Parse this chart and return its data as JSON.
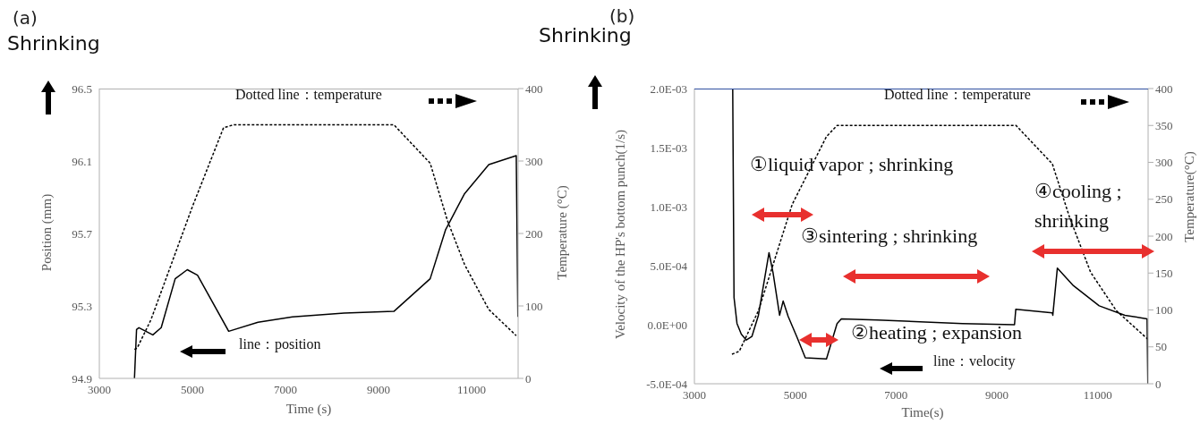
{
  "chart_data": [
    {
      "type": "line",
      "title": "(a)",
      "xlabel": "Time (s)",
      "ylabel": "Position (mm)",
      "y2label": "Temperature (°C)",
      "xlim": [
        3000,
        12000
      ],
      "xticks": [
        3000,
        5000,
        7000,
        9000,
        11000
      ],
      "ylim": [
        94.9,
        96.5
      ],
      "yticks": [
        94.9,
        95.3,
        95.7,
        96.1,
        96.5
      ],
      "y2lim": [
        0,
        400
      ],
      "y2ticks": [
        0,
        100,
        200,
        300,
        400
      ],
      "marker": "none",
      "annotations": [
        "Shrinking",
        "Dotted line：temperature",
        "line：position"
      ],
      "series": [
        {
          "color": "#000000",
          "line_style": "solid",
          "x": [
            3755,
            3800,
            3850,
            4150,
            4330,
            4630,
            4890,
            5110,
            5780,
            6410,
            7150,
            8260,
            9330,
            10110,
            10440,
            10850,
            11370,
            11960,
            11995
          ],
          "values": [
            94.9,
            95.17,
            95.18,
            95.14,
            95.18,
            95.45,
            95.5,
            95.47,
            95.16,
            95.21,
            95.24,
            95.26,
            95.27,
            95.45,
            95.72,
            95.92,
            96.08,
            96.13,
            95.24
          ]
        },
        {
          "color": "#000000",
          "axis": "y2",
          "line_style": "dotted",
          "x": [
            3755,
            3815,
            4110,
            5000,
            5670,
            5890,
            9330,
            10110,
            10480,
            10850,
            11370,
            11960
          ],
          "values": [
            40,
            42,
            81,
            237,
            346,
            350,
            350,
            297,
            218,
            157,
            95,
            59
          ]
        }
      ]
    },
    {
      "type": "line",
      "title": "(b)",
      "xlabel": "Time(s)",
      "ylabel": "Velocity of the HP's bottom punch(1/s)",
      "y2label": "Temperature(°C)",
      "xlim": [
        3000,
        12000
      ],
      "xticks": [
        3000,
        5000,
        7000,
        9000,
        11000
      ],
      "ylim": [
        -0.0005,
        0.002
      ],
      "yticks": [
        {
          "value": -0.0005,
          "label": "-5.0E-04"
        },
        {
          "value": 0,
          "label": "0.0E+00"
        },
        {
          "value": 0.0005,
          "label": "5.0E-04"
        },
        {
          "value": 0.001,
          "label": "1.0E-03"
        },
        {
          "value": 0.0015,
          "label": "1.5E-03"
        },
        {
          "value": 0.002,
          "label": "2.0E-03"
        }
      ],
      "y2lim": [
        0,
        400
      ],
      "y2ticks": [
        0,
        50,
        100,
        150,
        200,
        250,
        300,
        350,
        400
      ],
      "marker": "none",
      "annotations": [
        "Shrinking",
        "Dotted line：temperature",
        "line：velocity",
        "①liquid vapor ; shrinking",
        "②heating ; expansion",
        "③sintering ; shrinking",
        "④cooling ; shrinking"
      ],
      "series": [
        {
          "color": "#000000",
          "line_style": "solid",
          "x": [
            3760,
            3786,
            3845,
            3930,
            4030,
            4140,
            4270,
            4480,
            4560,
            4690,
            4760,
            4860,
            5030,
            5200,
            5620,
            5830,
            5915,
            6630,
            8320,
            9350,
            9375,
            10100,
            10110,
            10200,
            10520,
            11030,
            11540,
            11980,
            11995
          ],
          "values": [
            0.002,
            0.00023,
            1e-05,
            -8e-05,
            -0.00013,
            -0.0001,
            8e-05,
            0.00061,
            0.00044,
            8e-05,
            0.0002,
            7e-05,
            -0.0001,
            -0.00028,
            -0.00029,
            1e-05,
            5e-05,
            4e-05,
            1e-05,
            0.0,
            0.00013,
            0.0001,
            8e-05,
            0.00048,
            0.00033,
            0.00016,
            8e-05,
            5e-05,
            -0.0005
          ]
        },
        {
          "color": "#000000",
          "axis": "y2",
          "line_style": "dotted",
          "x": [
            3745,
            3890,
            4270,
            4940,
            5620,
            5830,
            9380,
            10100,
            10440,
            10860,
            11370,
            12000
          ],
          "values": [
            40,
            44,
            99,
            243,
            335,
            350,
            350,
            298,
            226,
            151,
            99,
            60
          ]
        }
      ]
    }
  ]
}
